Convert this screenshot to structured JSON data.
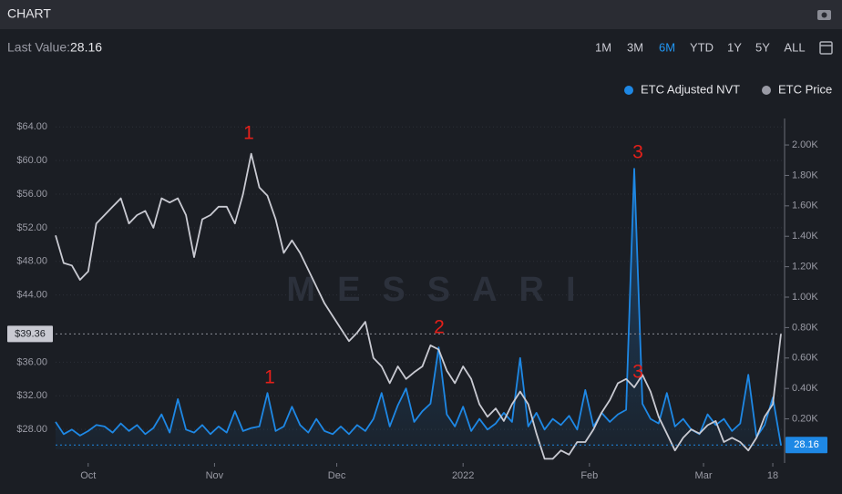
{
  "header": {
    "title": "CHART",
    "last_value_label": "Last Value:",
    "last_value": "28.16",
    "ranges": [
      "1M",
      "3M",
      "6M",
      "YTD",
      "1Y",
      "5Y",
      "ALL"
    ],
    "active_range": "6M"
  },
  "chart_data": {
    "type": "line",
    "watermark": "MESSARI",
    "x": [
      0,
      2,
      4,
      6,
      8,
      10,
      12,
      14,
      16,
      18,
      20,
      22,
      24,
      26,
      28,
      30,
      32,
      34,
      36,
      38,
      40,
      42,
      44,
      46,
      48,
      50,
      52,
      54,
      56,
      58,
      60,
      62,
      64,
      66,
      68,
      70,
      72,
      74,
      76,
      78,
      80,
      82,
      84,
      86,
      88,
      90,
      92,
      94,
      96,
      98,
      100,
      102,
      104,
      106,
      108,
      110,
      112,
      114,
      116,
      118,
      120,
      122,
      124,
      126,
      128,
      130,
      132,
      134,
      136,
      138,
      140,
      142,
      144,
      146,
      148,
      150,
      152,
      154,
      156,
      158,
      160,
      162,
      164,
      166,
      168,
      170,
      172,
      174,
      176,
      178
    ],
    "xlim": [
      0,
      178
    ],
    "xticks": [
      {
        "value": 8,
        "label": "Oct"
      },
      {
        "value": 39,
        "label": "Nov"
      },
      {
        "value": 69,
        "label": "Dec"
      },
      {
        "value": 100,
        "label": "2022"
      },
      {
        "value": 131,
        "label": "Feb"
      },
      {
        "value": 159,
        "label": "Mar"
      },
      {
        "value": 176,
        "label": "18"
      }
    ],
    "ylim": [
      24,
      65
    ],
    "yticks": [
      {
        "value": 28,
        "label": "$28.00"
      },
      {
        "value": 32,
        "label": "$32.00"
      },
      {
        "value": 36,
        "label": "$36.00"
      },
      {
        "value": 44,
        "label": "$44.00"
      },
      {
        "value": 48,
        "label": "$48.00"
      },
      {
        "value": 52,
        "label": "$52.00"
      },
      {
        "value": 56,
        "label": "$56.00"
      },
      {
        "value": 60,
        "label": "$60.00"
      },
      {
        "value": 64,
        "label": "$64.00"
      }
    ],
    "y2lim": [
      -90,
      2174
    ],
    "y2ticks": [
      {
        "value": 200,
        "label": "0.20K"
      },
      {
        "value": 400,
        "label": "0.40K"
      },
      {
        "value": 600,
        "label": "0.60K"
      },
      {
        "value": 800,
        "label": "0.80K"
      },
      {
        "value": 1000,
        "label": "1.00K"
      },
      {
        "value": 1200,
        "label": "1.20K"
      },
      {
        "value": 1400,
        "label": "1.40K"
      },
      {
        "value": 1600,
        "label": "1.60K"
      },
      {
        "value": 1800,
        "label": "1.80K"
      },
      {
        "value": 2000,
        "label": "2.00K"
      }
    ],
    "grid": true,
    "legend": "top-right",
    "price_tag": "$39.36",
    "nvt_tag": "28.16",
    "series": [
      {
        "name": "ETC Adjusted NVT",
        "color": "#1e88e5",
        "axis": "y2",
        "values": [
          180,
          100,
          130,
          90,
          120,
          160,
          150,
          110,
          170,
          120,
          160,
          100,
          140,
          230,
          110,
          330,
          130,
          110,
          160,
          100,
          150,
          110,
          250,
          120,
          140,
          150,
          370,
          120,
          150,
          280,
          160,
          110,
          200,
          120,
          100,
          150,
          100,
          160,
          120,
          200,
          370,
          150,
          290,
          400,
          180,
          250,
          300,
          670,
          230,
          150,
          280,
          120,
          200,
          130,
          170,
          240,
          180,
          600,
          150,
          240,
          130,
          200,
          160,
          220,
          130,
          390,
          150,
          240,
          180,
          230,
          260,
          1844,
          300,
          200,
          170,
          370,
          150,
          200,
          130,
          100,
          230,
          160,
          200,
          120,
          170,
          490,
          80,
          160,
          340,
          28.16
        ]
      },
      {
        "name": "ETC Price",
        "color": "#c9cad2",
        "legend_color": "#9a9ba5",
        "values": [
          51.1,
          47.8,
          47.5,
          45.8,
          46.8,
          52.5,
          53.5,
          54.5,
          55.5,
          52.5,
          53.5,
          54,
          52,
          55.5,
          55,
          55.5,
          53.5,
          48.5,
          53,
          53.5,
          54.5,
          54.5,
          52.5,
          56,
          60.8,
          56.8,
          55.8,
          53,
          49,
          50.5,
          49,
          47,
          45,
          43,
          41.5,
          40,
          38.5,
          39.5,
          40.8,
          36.5,
          35.5,
          33.5,
          35.5,
          34,
          34.8,
          35.5,
          38,
          37.5,
          35,
          33.5,
          35.5,
          34,
          31,
          29.5,
          30.5,
          29,
          31,
          32.5,
          31,
          27.5,
          24.5,
          24.5,
          25.5,
          25,
          26.5,
          26.5,
          28,
          30,
          31.5,
          33.5,
          34,
          33,
          34.5,
          32.5,
          29.5,
          27.5,
          25.5,
          27,
          28,
          27.5,
          28.5,
          29,
          26.5,
          27,
          26.5,
          25.5,
          27,
          29.5,
          31,
          39.36
        ]
      }
    ],
    "annotations": [
      "1",
      "2",
      "3",
      "1",
      "3"
    ]
  }
}
